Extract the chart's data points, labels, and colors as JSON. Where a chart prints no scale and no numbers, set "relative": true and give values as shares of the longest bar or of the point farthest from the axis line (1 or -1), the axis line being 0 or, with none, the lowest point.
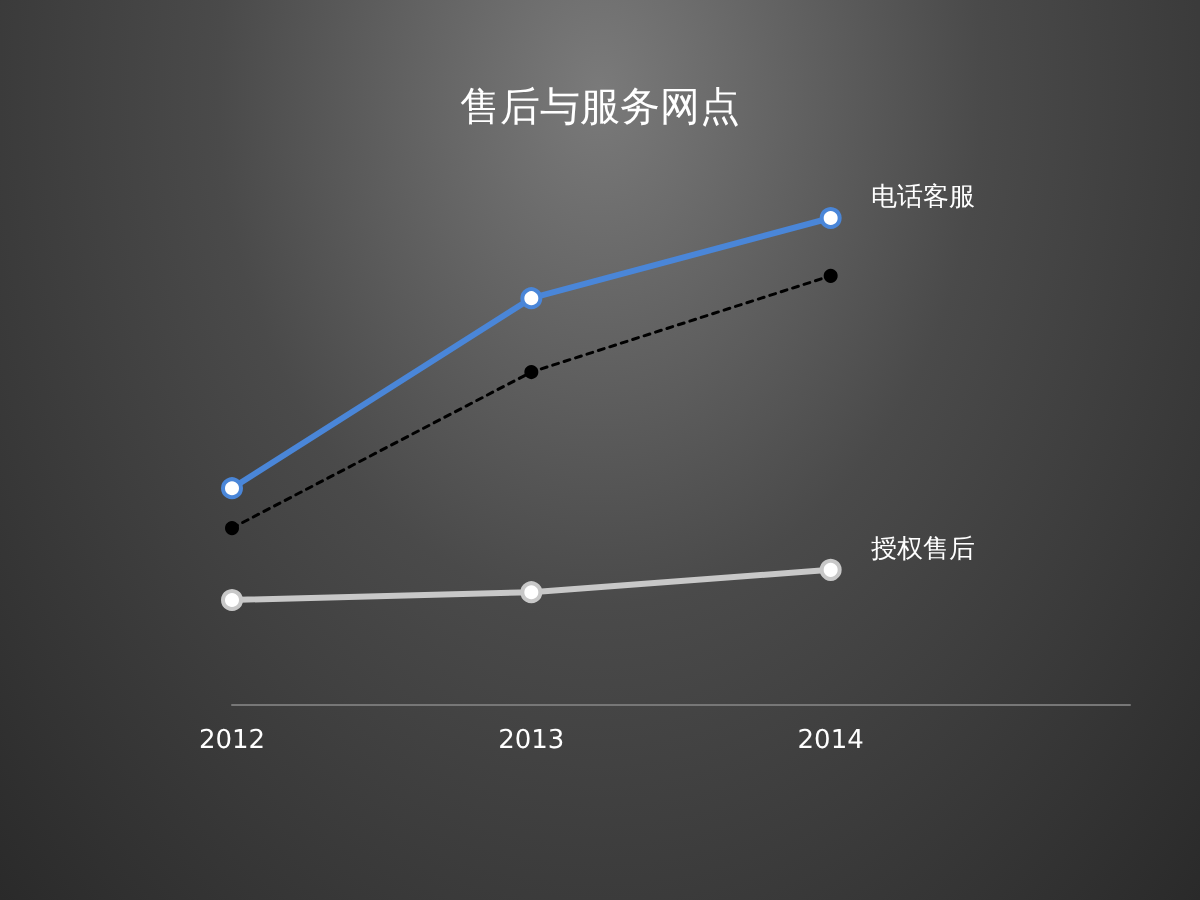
{
  "chart_data": {
    "type": "line",
    "title": "售后与服务网点",
    "relative": true,
    "x": [
      2012,
      2013,
      2014
    ],
    "xlim": [
      2012,
      2015
    ],
    "xticks": [
      2012,
      2013,
      2014
    ],
    "grid": false,
    "legend": false,
    "series": [
      {
        "name": "电话客服",
        "color": "#4a86d8",
        "values": [
          0.444,
          0.835,
          1
        ],
        "marker": "circle",
        "line_style": "solid"
      },
      {
        "color": "#000000",
        "values": [
          0.362,
          0.683,
          0.881
        ],
        "marker": "circle",
        "line_style": "dashed"
      },
      {
        "name": "授权售后",
        "color": "#c8c8c8",
        "values": [
          0.214,
          0.23,
          0.276
        ],
        "marker": "circle",
        "line_style": "solid"
      }
    ]
  }
}
